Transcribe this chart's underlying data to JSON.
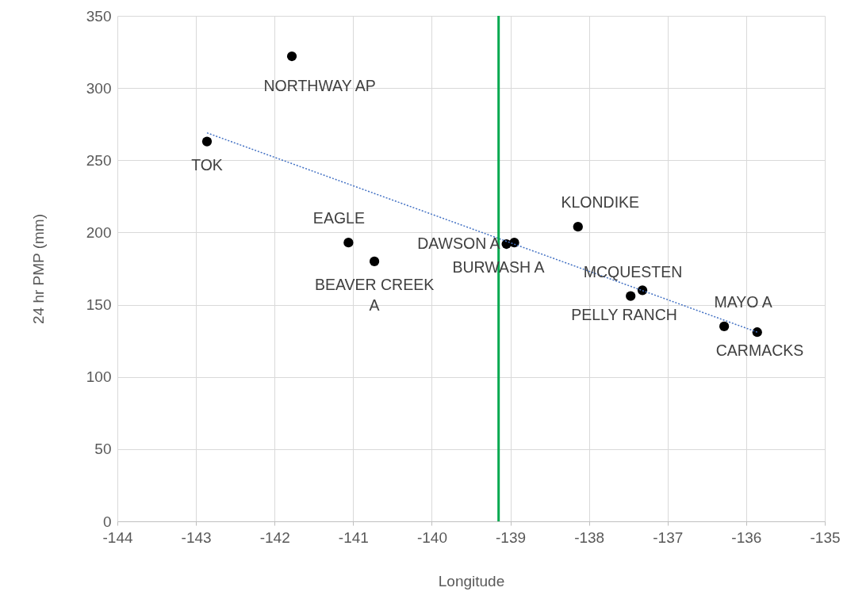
{
  "chart_data": {
    "type": "scatter",
    "xlabel": "Longitude",
    "ylabel": "24 hr PMP (mm)",
    "xlim": [
      -144,
      -135
    ],
    "xticks": [
      -144,
      -143,
      -142,
      -141,
      -140,
      -139,
      -138,
      -137,
      -136,
      -135
    ],
    "ylim": [
      0,
      350
    ],
    "yticks": [
      0,
      50,
      100,
      150,
      200,
      250,
      300,
      350
    ],
    "grid": true,
    "marker": "circle",
    "series": [
      {
        "type": "scatter",
        "color": "#000000",
        "x": [
          -141.78,
          -142.86,
          -141.06,
          -140.73,
          -139.05,
          -138.95,
          -138.14,
          -137.32,
          -137.47,
          -136.28,
          -135.86
        ],
        "values": [
          322,
          263,
          193,
          180,
          192,
          193,
          204,
          160,
          156,
          135,
          131
        ]
      },
      {
        "type": "line",
        "color": "#4472c4",
        "line_style": "dotted",
        "marker": "none",
        "x": [
          -142.86,
          -135.86
        ],
        "values": [
          269,
          131
        ]
      }
    ],
    "ref_lines": [
      {
        "axis": "x",
        "value": -139.15,
        "color": "#00a94f"
      }
    ],
    "annotations": [
      {
        "text": "NORTHWAY AP",
        "x": -141.78,
        "y": 322
      },
      {
        "text": "TOK",
        "x": -142.86,
        "y": 263
      },
      {
        "text": "EAGLE",
        "x": -141.06,
        "y": 193
      },
      {
        "text": "BEAVER CREEK A",
        "x": -140.73,
        "y": 180
      },
      {
        "text": "DAWSON A",
        "x": -139.05,
        "y": 192
      },
      {
        "text": "BURWASH A",
        "x": -138.95,
        "y": 193
      },
      {
        "text": "KLONDIKE",
        "x": -138.14,
        "y": 204
      },
      {
        "text": "MCQUESTEN",
        "x": -137.32,
        "y": 160
      },
      {
        "text": "PELLY RANCH",
        "x": -137.47,
        "y": 156
      },
      {
        "text": "MAYO A",
        "x": -136.28,
        "y": 135
      },
      {
        "text": "CARMACKS",
        "x": -135.86,
        "y": 131
      }
    ]
  }
}
